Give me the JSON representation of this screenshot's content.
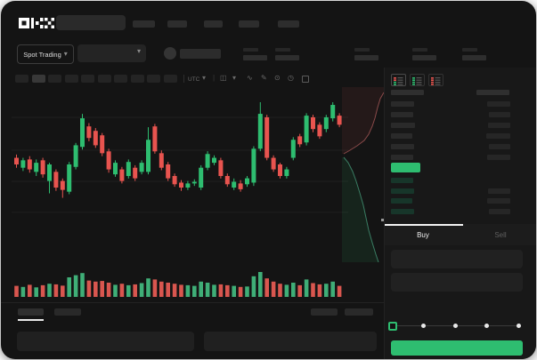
{
  "app": {
    "logo": "OKX"
  },
  "controls": {
    "spot_trading_label": "Spot Trading",
    "chevron": "▾",
    "divider": "|"
  },
  "toolbar": {
    "timezone": "UTC",
    "glyphs": {
      "chart_type": "◫",
      "wave": "∿",
      "brush": "✎",
      "camera": "⊙",
      "clock": "◷"
    }
  },
  "palette": {
    "green": "#2ebd70",
    "red": "#e8544f",
    "vol_green": "#3fae77",
    "vol_red": "#d9564f",
    "depth_ask_line": "#8a4a4a",
    "depth_ask_fill": "rgba(190,80,80,0.10)",
    "depth_bid_line": "#3a7d63",
    "depth_bid_fill": "rgba(46,189,112,0.10)",
    "grid": "rgba(255,255,255,0.05)",
    "bid_bar": "#17362a",
    "ask_bar": "#2a2a2a"
  },
  "chart_data": {
    "type": "candlestick",
    "price_scale": {
      "min": 0,
      "max": 100
    },
    "grid_prices": [
      85.5,
      65.6,
      46.8,
      28.0
    ],
    "candles": [
      [
        61,
        63,
        55,
        57
      ],
      [
        55,
        61,
        53,
        59.5
      ],
      [
        60,
        62,
        52,
        54
      ],
      [
        52.5,
        60,
        50,
        58
      ],
      [
        59.5,
        61,
        49,
        51
      ],
      [
        47,
        58,
        39.5,
        57
      ],
      [
        52.5,
        54,
        41,
        43
      ],
      [
        47,
        48.5,
        36.8,
        41.6
      ],
      [
        40.5,
        58.5,
        39,
        57
      ],
      [
        55.5,
        70,
        54,
        68.6
      ],
      [
        67.6,
        87.6,
        66,
        84.9
      ],
      [
        80,
        82,
        71,
        73
      ],
      [
        77.3,
        79,
        67,
        68.6
      ],
      [
        74.6,
        76,
        62,
        63.8
      ],
      [
        64.9,
        66.5,
        52,
        54
      ],
      [
        51,
        59.5,
        49.5,
        58
      ],
      [
        54,
        55.5,
        45.5,
        47
      ],
      [
        50,
        60,
        48.5,
        58.5
      ],
      [
        55,
        56.5,
        47,
        48.6
      ],
      [
        52.5,
        59.5,
        51,
        58
      ],
      [
        52.5,
        79.5,
        51,
        71.9
      ],
      [
        80,
        81.5,
        63.5,
        64.9
      ],
      [
        63.8,
        65.5,
        53.5,
        55
      ],
      [
        57,
        58.5,
        47,
        48.6
      ],
      [
        50,
        51.5,
        43.5,
        45
      ],
      [
        46,
        47.5,
        41,
        43
      ],
      [
        43,
        47,
        41.5,
        45.5
      ],
      [
        45.5,
        48,
        44,
        46.5
      ],
      [
        43,
        56.5,
        41.5,
        55
      ],
      [
        55,
        65,
        53.5,
        63.3
      ],
      [
        58,
        62.5,
        56.5,
        61
      ],
      [
        59.5,
        61,
        48.5,
        50
      ],
      [
        50,
        51.5,
        43.5,
        45
      ],
      [
        43,
        48.5,
        41.5,
        46.5
      ],
      [
        45.5,
        47.5,
        40.5,
        42
      ],
      [
        45,
        50,
        43.5,
        48.6
      ],
      [
        46,
        68,
        44,
        66.5
      ],
      [
        66.5,
        94.6,
        65,
        87.6
      ],
      [
        85.5,
        87,
        59.5,
        61
      ],
      [
        61,
        62.5,
        52.5,
        54
      ],
      [
        57,
        58,
        48.5,
        50
      ],
      [
        50,
        55.5,
        48.5,
        54
      ],
      [
        61,
        73.5,
        59.5,
        71.9
      ],
      [
        74,
        75.5,
        67.5,
        69.2
      ],
      [
        70.3,
        88,
        68.5,
        86.5
      ],
      [
        85.5,
        87,
        76.5,
        78.4
      ],
      [
        81,
        82.5,
        72.5,
        74
      ],
      [
        78.4,
        87,
        76.5,
        85.5
      ],
      [
        84.9,
        94.6,
        83,
        93
      ],
      [
        86.5,
        88,
        79.5,
        81
      ]
    ],
    "volumes": [
      35,
      30,
      40,
      28,
      38,
      45,
      42,
      36,
      75,
      85,
      95,
      60,
      55,
      58,
      50,
      40,
      45,
      38,
      42,
      48,
      70,
      65,
      55,
      50,
      45,
      40,
      38,
      35,
      55,
      50,
      40,
      42,
      38,
      35,
      30,
      32,
      80,
      100,
      70,
      55,
      45,
      40,
      50,
      38,
      65,
      48,
      42,
      45,
      55,
      35
    ],
    "depth": {
      "asks_line": [
        [
          418,
          6
        ],
        [
          414,
          13
        ],
        [
          411,
          23
        ],
        [
          408,
          35
        ],
        [
          405,
          44
        ],
        [
          401,
          53
        ],
        [
          396,
          60
        ],
        [
          388,
          66
        ],
        [
          380,
          71
        ],
        [
          373,
          75
        ]
      ],
      "bids_line": [
        [
          373,
          79
        ],
        [
          378,
          85
        ],
        [
          383,
          95
        ],
        [
          387,
          106
        ],
        [
          391,
          119
        ],
        [
          395,
          133
        ],
        [
          398,
          147
        ],
        [
          401,
          161
        ],
        [
          405,
          175
        ],
        [
          409,
          188
        ],
        [
          412,
          197
        ]
      ]
    }
  },
  "orderbook": {
    "asks": [
      {
        "p": 26,
        "a": 26
      },
      {
        "p": 25,
        "a": 24
      },
      {
        "p": 27,
        "a": 25
      },
      {
        "p": 24,
        "a": 27
      },
      {
        "p": 26,
        "a": 24
      },
      {
        "p": 25,
        "a": 26
      }
    ],
    "bids": [
      {
        "p": 25,
        "a": 0
      },
      {
        "p": 26,
        "a": 25
      },
      {
        "p": 24,
        "a": 26
      },
      {
        "p": 26,
        "a": 24
      }
    ]
  },
  "trade_panel": {
    "tabs": {
      "buy": "Buy",
      "sell": "Sell"
    },
    "slider": {
      "stops": 5,
      "value_index": 0
    }
  }
}
